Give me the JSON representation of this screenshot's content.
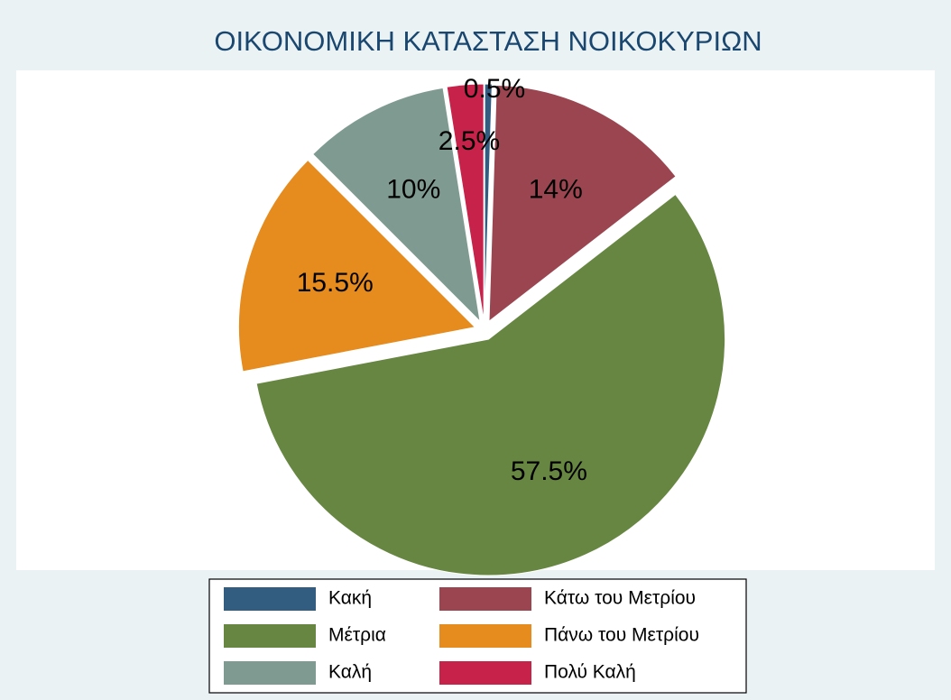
{
  "chart_data": {
    "type": "pie",
    "title": "ΟΙΚΟΝΟΜΙΚΗ ΚΑΤΑΣΤΑΣΗ ΝΟΙΚΟΚΥΡΙΩΝ",
    "categories": [
      "Κακή",
      "Κάτω του Μετρίου",
      "Μέτρια",
      "Πάνω του Μετρίου",
      "Καλή",
      "Πολύ Καλή"
    ],
    "values": [
      0.5,
      14,
      57.5,
      15.5,
      10,
      2.5
    ],
    "value_labels": [
      "0.5%",
      "14%",
      "57.5%",
      "15.5%",
      "10%",
      "2.5%"
    ],
    "colors": [
      "#325d80",
      "#9a4550",
      "#678642",
      "#e68b1d",
      "#7f9b91",
      "#c6224a"
    ],
    "legend": "bottom"
  }
}
